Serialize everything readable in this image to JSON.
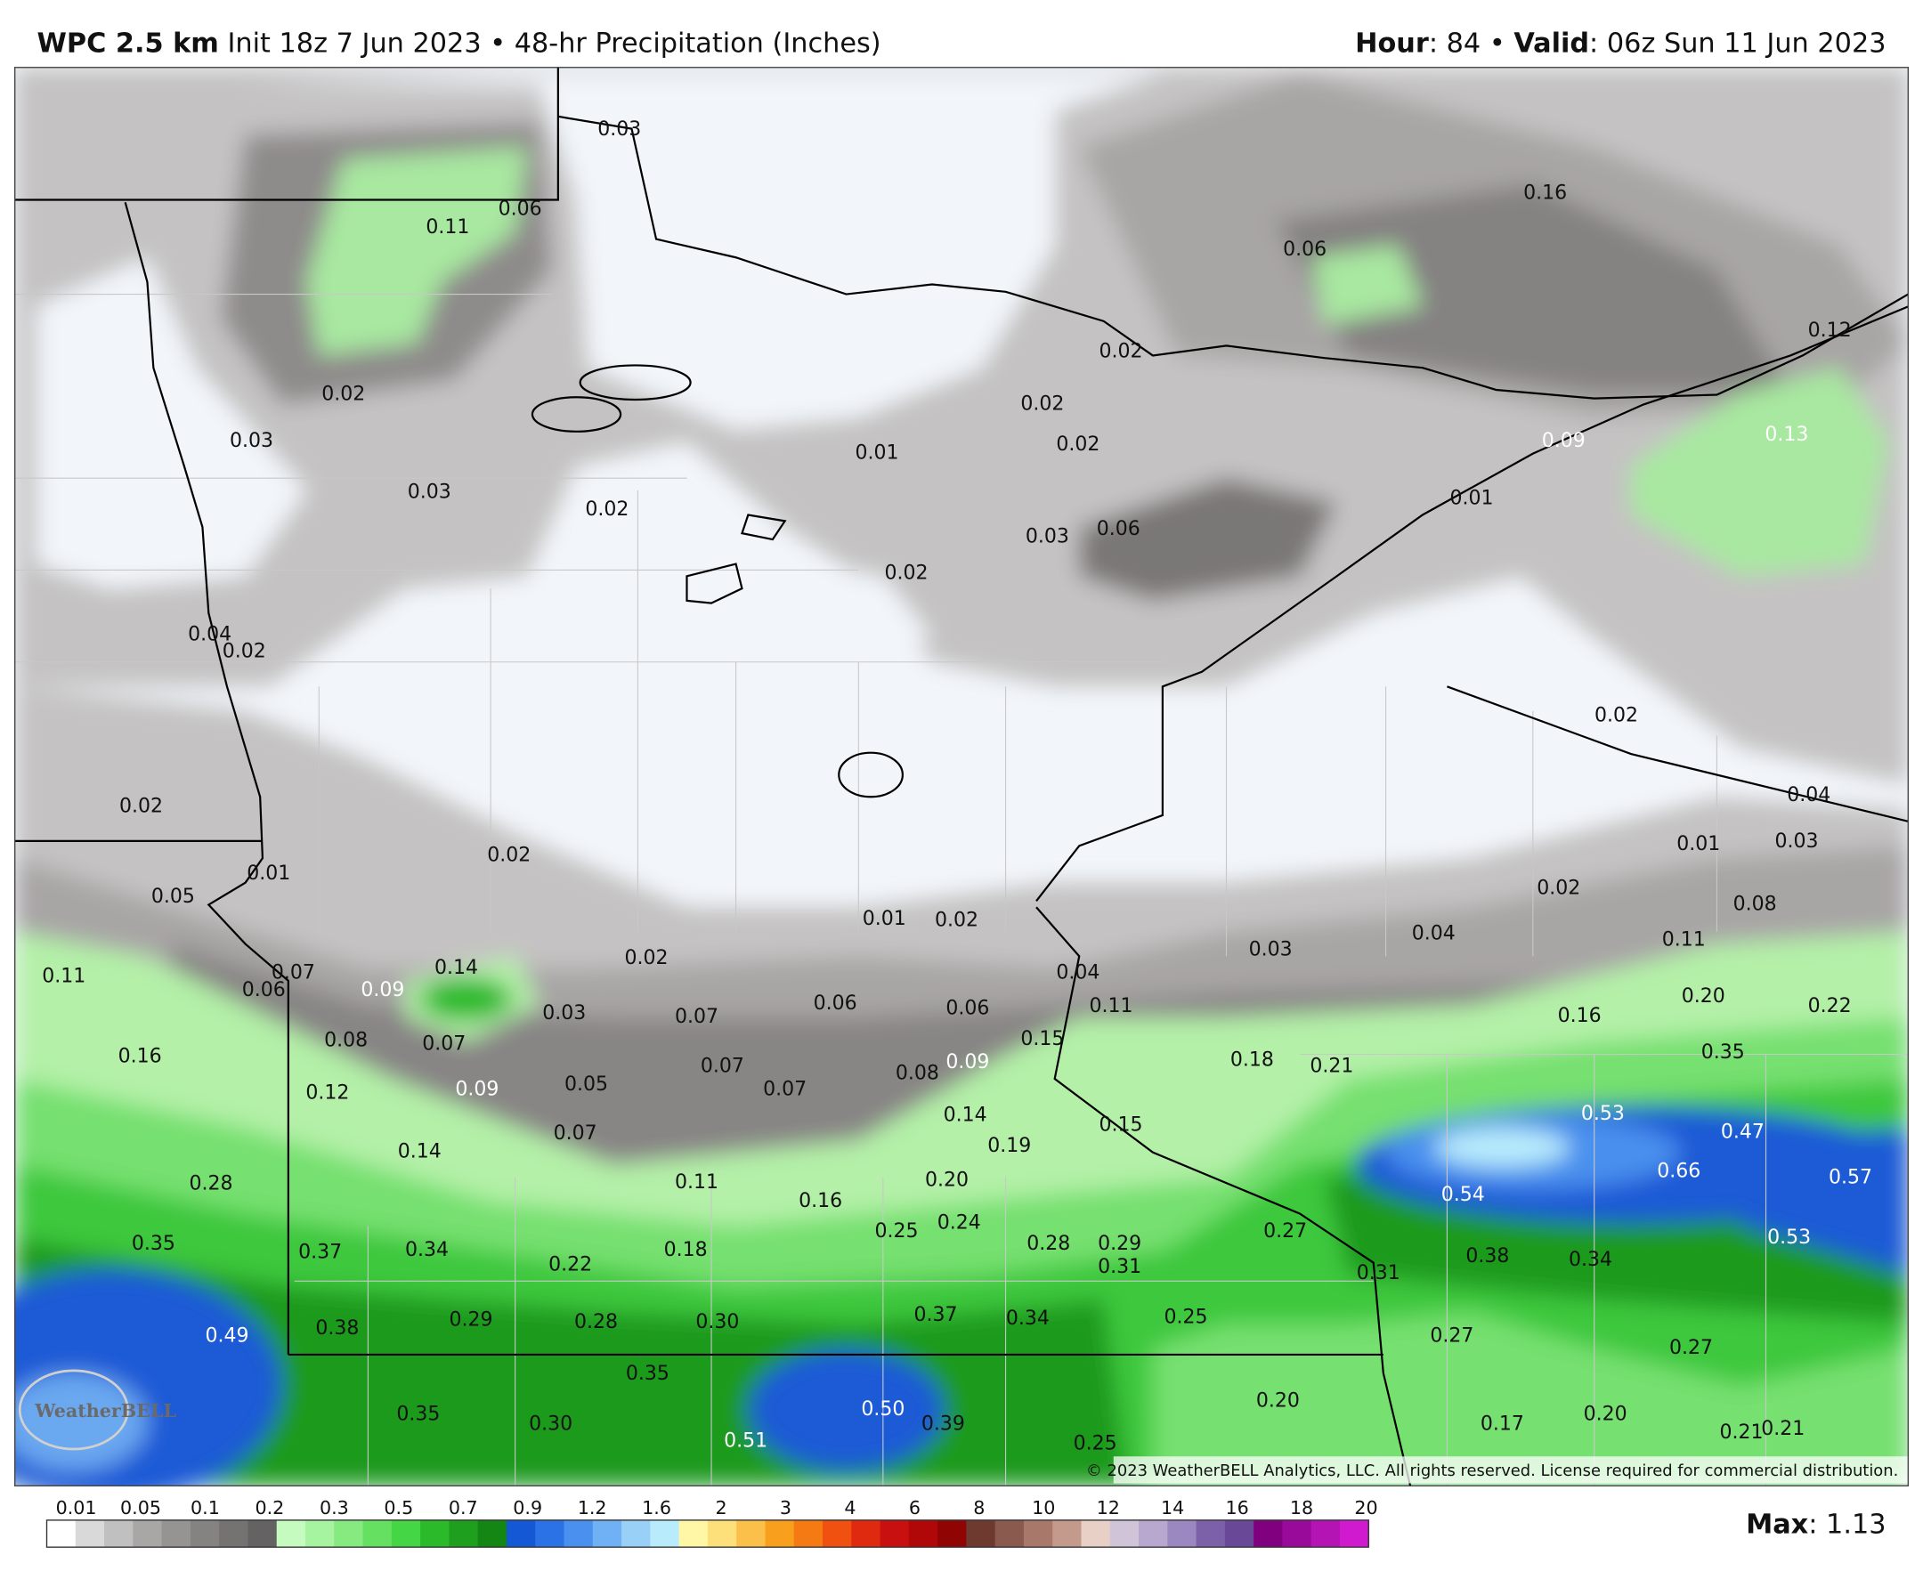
{
  "header": {
    "model": "WPC 2.5 km",
    "init": "Init 18z 7 Jun 2023 • 48-hr Precipitation (Inches)",
    "hour_label": "Hour",
    "hour": ": 84 • ",
    "valid_label": "Valid",
    "valid": ": 06z Sun 11 Jun 2023"
  },
  "map": {
    "logo": "WeatherBELL",
    "copyright": "© 2023 WeatherBELL Analytics, LLC. All rights reserved. License required for commercial distribution.",
    "labels": [
      "0.03",
      "0.06",
      "0.11",
      "0.16",
      "0.06",
      "0.12",
      "0.02",
      "0.02",
      "0.02",
      "0.03",
      "0.02",
      "0.01",
      "0.09",
      "0.13",
      "0.03",
      "0.02",
      "0.01",
      "0.06",
      "0.03",
      "0.02",
      "0.04",
      "0.02",
      "0.02",
      "0.02",
      "0.04",
      "0.01",
      "0.03",
      "0.02",
      "0.01",
      "0.02",
      "0.05",
      "0.08",
      "0.01",
      "0.02",
      "0.04",
      "0.03",
      "0.02",
      "0.11",
      "0.14",
      "0.07",
      "0.04",
      "0.11",
      "0.06",
      "0.09",
      "0.11",
      "0.22",
      "0.20",
      "0.03",
      "0.07",
      "0.06",
      "0.06",
      "0.16",
      "0.08",
      "0.07",
      "0.15",
      "0.35",
      "0.16",
      "0.18",
      "0.21",
      "0.09",
      "0.07",
      "0.08",
      "0.07",
      "0.05",
      "0.09",
      "0.12",
      "0.53",
      "0.14",
      "0.15",
      "0.47",
      "0.07",
      "0.19",
      "0.14",
      "0.66",
      "0.57",
      "0.20",
      "0.11",
      "0.28",
      "0.54",
      "0.16",
      "0.24",
      "0.25",
      "0.27",
      "0.53",
      "0.35",
      "0.28",
      "0.29",
      "0.37",
      "0.34",
      "0.18",
      "0.38",
      "0.34",
      "0.22",
      "0.31",
      "0.31",
      "0.25",
      "0.37",
      "0.34",
      "0.29",
      "0.28",
      "0.30",
      "0.38",
      "0.49",
      "0.27",
      "0.27",
      "0.35",
      "0.20",
      "0.50",
      "0.35",
      "0.20",
      "0.30",
      "0.39",
      "0.17",
      "0.21",
      "0.21",
      "0.51",
      "0.25"
    ]
  },
  "legend": {
    "ticks": [
      "0.01",
      "0.05",
      "0.1",
      "0.2",
      "0.3",
      "0.5",
      "0.7",
      "0.9",
      "1.2",
      "1.6",
      "2",
      "3",
      "4",
      "6",
      "8",
      "10",
      "12",
      "14",
      "16",
      "18",
      "20"
    ],
    "colors": [
      "#ffffff",
      "#d9d9d9",
      "#c0c0c0",
      "#a9a6a6",
      "#969393",
      "#858282",
      "#757272",
      "#646262",
      "#c6fbc0",
      "#a6f3a0",
      "#86ea80",
      "#66e060",
      "#44d644",
      "#2aba2a",
      "#1ea01e",
      "#138613",
      "#1558d6",
      "#2a72e6",
      "#4a90ee",
      "#70b0f4",
      "#98d0f8",
      "#b8ecfc",
      "#fff7a6",
      "#fde07a",
      "#fbc04a",
      "#f8a01e",
      "#f57a14",
      "#f05010",
      "#e02a10",
      "#c81010",
      "#b00808",
      "#900404",
      "#6e3a30",
      "#8a5a4e",
      "#a8786a",
      "#c49a8c",
      "#e8d0c6",
      "#d0c4d8",
      "#b8a8d0",
      "#9c88c0",
      "#7c60a8",
      "#6a4898",
      "#800080",
      "#9a0a9a",
      "#b414b4",
      "#d01ad0"
    ],
    "max_label": "Max",
    "max": ": 1.13"
  }
}
